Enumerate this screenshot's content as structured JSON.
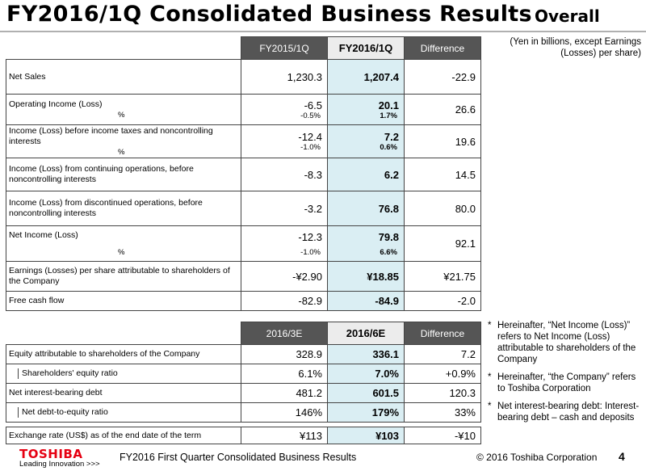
{
  "header": {
    "title": "FY2016/1Q Consolidated Business Results",
    "subtitle": "Overall",
    "unit_note": "(Yen in billions, except Earnings (Losses) per share)"
  },
  "table1": {
    "columns": [
      "FY2015/1Q",
      "FY2016/1Q",
      "Difference"
    ],
    "rows": [
      {
        "label": "Net Sales",
        "c1": "1,230.3",
        "c2": "1,207.4",
        "c3": "-22.9"
      },
      {
        "label": "Operating Income (Loss)",
        "c1": "-6.5",
        "c2": "20.1",
        "c3": "26.6",
        "pct_label": "%",
        "p1": "-0.5%",
        "p2": "1.7%"
      },
      {
        "label": "Income (Loss) before income taxes and noncontrolling interests",
        "c1": "-12.4",
        "c2": "7.2",
        "c3": "19.6",
        "pct_label": "%",
        "p1": "-1.0%",
        "p2": "0.6%"
      },
      {
        "label": "Income (Loss) from continuing operations, before noncontrolling interests",
        "c1": "-8.3",
        "c2": "6.2",
        "c3": "14.5"
      },
      {
        "label": "Income (Loss) from discontinued operations, before noncontrolling interests",
        "c1": "-3.2",
        "c2": "76.8",
        "c3": "80.0"
      },
      {
        "label": "Net Income (Loss)",
        "c1": "-12.3",
        "c2": "79.8",
        "c3": "92.1",
        "pct_label": "%",
        "p1": "-1.0%",
        "p2": "6.6%"
      },
      {
        "label": "Earnings (Losses) per share attributable to shareholders of the Company",
        "c1": "-¥2.90",
        "c2": "¥18.85",
        "c3": "¥21.75"
      },
      {
        "label": "Free cash flow",
        "c1": "-82.9",
        "c2": "-84.9",
        "c3": "-2.0"
      }
    ]
  },
  "table2": {
    "columns": [
      "2016/3E",
      "2016/6E",
      "Difference"
    ],
    "rows": [
      {
        "label": "Equity attributable to shareholders of the Company",
        "c1": "328.9",
        "c2": "336.1",
        "c3": "7.2"
      },
      {
        "label": "Shareholders' equity ratio",
        "c1": "6.1%",
        "c2": "7.0%",
        "c3": "+0.9%"
      },
      {
        "label": "Net interest-bearing debt",
        "c1": "481.2",
        "c2": "601.5",
        "c3": "120.3"
      },
      {
        "label": "Net debt-to-equity ratio",
        "c1": "146%",
        "c2": "179%",
        "c3": "33%"
      }
    ]
  },
  "table3": {
    "rows": [
      {
        "label": "Exchange rate (US$) as of the end date of the term",
        "c1": "¥113",
        "c2": "¥103",
        "c3": "-¥10"
      }
    ]
  },
  "notes": [
    {
      "star": "*",
      "text": "Hereinafter, “Net Income (Loss)” refers to Net Income (Loss) attributable to shareholders of the Company"
    },
    {
      "star": "*",
      "text": "Hereinafter, “the Company” refers to Toshiba Corporation"
    },
    {
      "star": "*",
      "text": "Net interest-bearing debt: Interest-bearing debt – cash and deposits"
    }
  ],
  "footer": {
    "logo_name": "TOSHIBA",
    "logo_tagline": "Leading Innovation >>>",
    "title": "FY2016 First Quarter Consolidated Business Results",
    "copyright": "© 2016 Toshiba Corporation",
    "page_number": "4"
  },
  "colors": {
    "header_dark": "#555555",
    "highlight_column": "#daeef3",
    "logo_red": "#e60012"
  }
}
